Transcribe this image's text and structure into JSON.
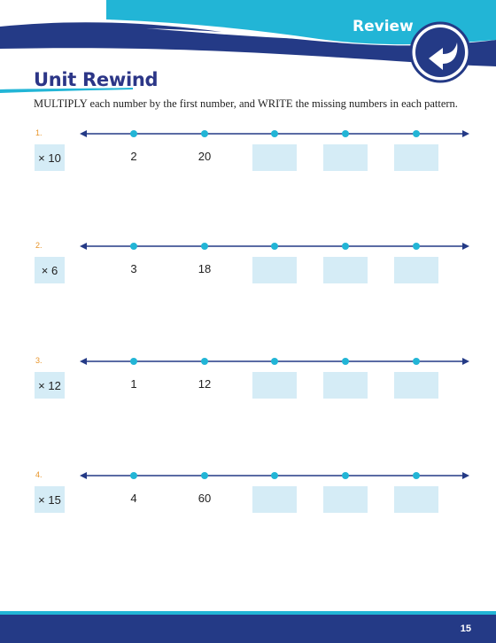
{
  "header": {
    "section_label": "Review",
    "title": "Unit Rewind"
  },
  "instructions": "MULTIPLY each number by the first number, and WRITE the missing numbers in each pattern.",
  "problems": [
    {
      "number": "1.",
      "factor": "× 10",
      "values": [
        "2",
        "20"
      ]
    },
    {
      "number": "2.",
      "factor": "× 6",
      "values": [
        "3",
        "18"
      ]
    },
    {
      "number": "3.",
      "factor": "× 12",
      "values": [
        "1",
        "12"
      ]
    },
    {
      "number": "4.",
      "factor": "× 15",
      "values": [
        "4",
        "60"
      ]
    }
  ],
  "footer": {
    "page_number": "15"
  },
  "colors": {
    "navy": "#243a86",
    "cyan": "#22b5d6",
    "light_box": "#d5ecf6",
    "number_orange": "#e8952a"
  }
}
